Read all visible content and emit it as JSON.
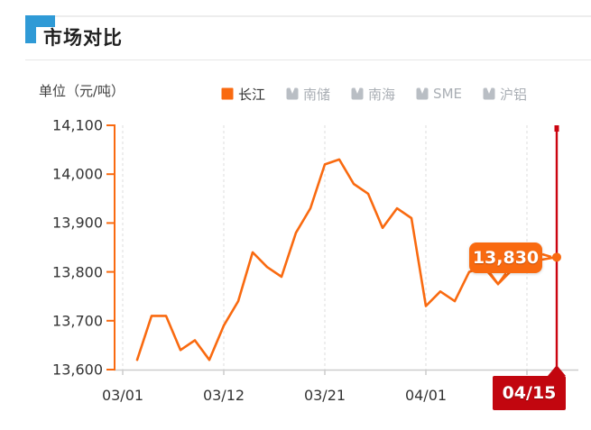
{
  "page": {
    "title": "市场对比"
  },
  "chart": {
    "unit_label": "单位（元/吨）"
  },
  "chart_data": {
    "type": "line",
    "title": "市场对比",
    "ylabel": "元/吨",
    "grid": true,
    "legend_position": "top",
    "legend": [
      {
        "id": "changjiang",
        "label": "长江",
        "active": true
      },
      {
        "id": "nanchu",
        "label": "南储",
        "active": false
      },
      {
        "id": "nanhai",
        "label": "南海",
        "active": false
      },
      {
        "id": "sme",
        "label": "SME",
        "active": false
      },
      {
        "id": "hulv",
        "label": "沪铝",
        "active": false
      }
    ],
    "series": [
      {
        "name": "长江",
        "values": [
          13620,
          13710,
          13710,
          13640,
          13660,
          13620,
          13690,
          13740,
          13840,
          13810,
          13790,
          13880,
          13930,
          14020,
          14030,
          13980,
          13960,
          13890,
          13930,
          13910,
          13730,
          13760,
          13740,
          13800,
          13810,
          13775,
          13805,
          13815,
          13825,
          13830
        ]
      }
    ],
    "x_tick_labels": [
      "03/01",
      "03/12",
      "03/21",
      "04/01",
      "04/15"
    ],
    "x_tick_point_indices": [
      -1,
      6,
      13,
      20,
      27
    ],
    "y_tick_labels": [
      "14,100",
      "14,000",
      "13,900",
      "13,800",
      "13,700",
      "13,600"
    ],
    "y_ticks": [
      14100,
      14000,
      13900,
      13800,
      13700,
      13600
    ],
    "ylim": [
      13600,
      14100
    ],
    "highlight": {
      "value": 13830,
      "value_label": "13,830",
      "date_label": "04/15"
    },
    "colors": {
      "series_line": "#f96a10",
      "highlight_line": "#cb0410",
      "date_badge_bg": "#c2060f",
      "tooltip_bg": "#f96a10",
      "inactive_legend": "#b9bec4",
      "corner_blue": "#2f9ad6",
      "axis_gray": "#cccccc",
      "grid_gray": "#dcdcdc",
      "text_dark": "#333333"
    }
  }
}
